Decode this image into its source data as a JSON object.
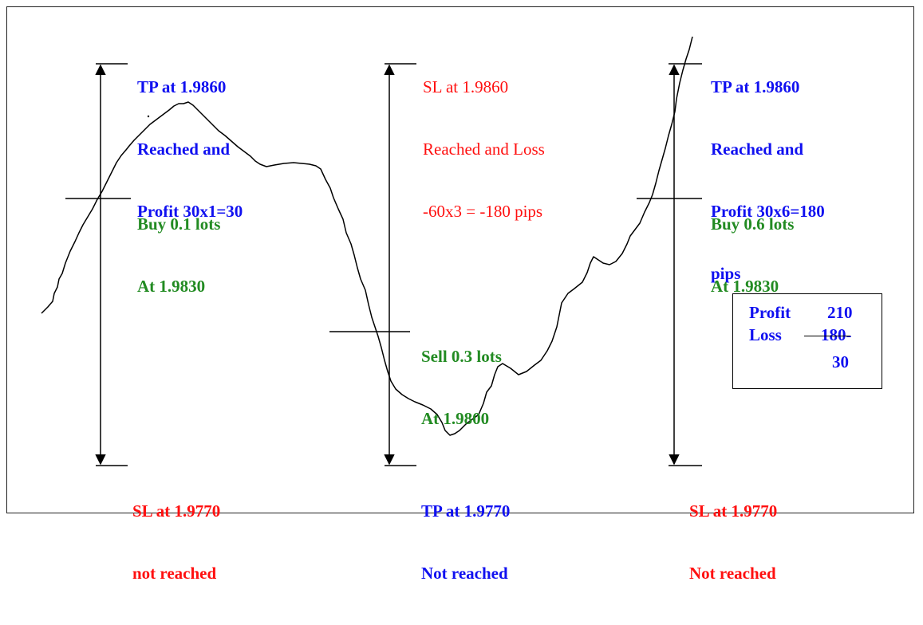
{
  "annotations": {
    "trade1_tp": [
      "TP at 1.9860",
      "Reached and",
      "Profit 30x1=30"
    ],
    "trade1_entry": [
      "Buy 0.1 lots",
      "At 1.9830"
    ],
    "trade1_sl": [
      "SL at 1.9770",
      "not reached"
    ],
    "trade2_sl": [
      "SL at 1.9860",
      "Reached and Loss",
      "-60x3 = -180 pips"
    ],
    "trade2_entry": [
      "Sell 0.3 lots",
      "At 1.9800"
    ],
    "trade2_tp": [
      "TP at 1.9770",
      "Not reached"
    ],
    "trade3_tp": [
      "TP at 1.9860",
      "Reached and",
      "Profit 30x6=180",
      "pips"
    ],
    "trade3_entry": [
      "Buy 0.6 lots",
      "At 1.9830"
    ],
    "trade3_sl": [
      "SL at 1.9770",
      "Not reached"
    ]
  },
  "summary": {
    "profit_label": "Profit",
    "profit_value": "210",
    "loss_label": "Loss",
    "loss_value": "180-",
    "net_value": "30"
  },
  "colors": {
    "tp_reached": "#1010f0",
    "entry": "#228b22",
    "sl": "#ff1010",
    "line": "#000000"
  }
}
